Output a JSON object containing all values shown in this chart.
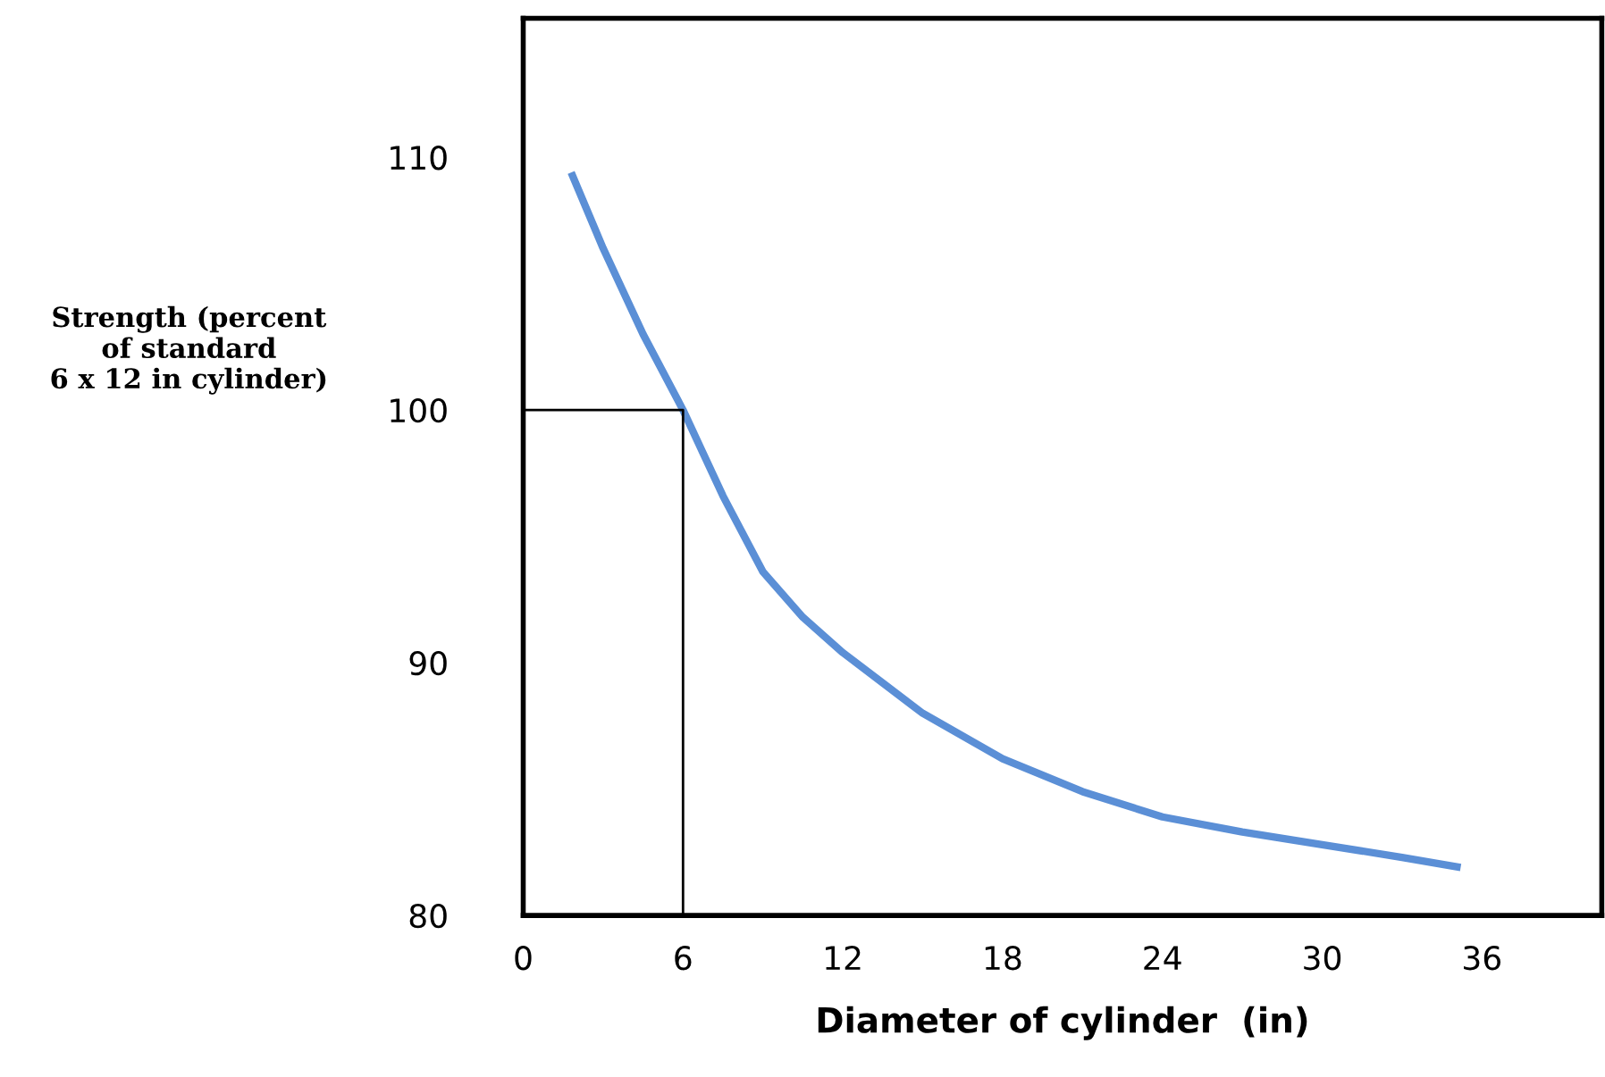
{
  "chart_data": {
    "type": "line",
    "xlabel": "Diameter of cylinder  (in)",
    "ylabel": "Strength (percent\nof standard\n6 x 12 in cylinder)",
    "series": [
      {
        "color": "#5b8fd6",
        "x": [
          1.8,
          3,
          4.5,
          6,
          7.5,
          9,
          10.5,
          12,
          15,
          18,
          21,
          24,
          27,
          30,
          33,
          35.2
        ],
        "values": [
          109.4,
          106.4,
          103.0,
          100,
          96.6,
          93.6,
          91.8,
          90.4,
          88.0,
          86.2,
          84.9,
          83.9,
          83.3,
          82.8,
          82.3,
          81.9
        ]
      },
      {
        "color": "#000000",
        "x": [
          0,
          6,
          6
        ],
        "values": [
          100,
          100,
          80
        ]
      }
    ],
    "xlim": [
      0,
      40.5
    ],
    "xticks": [
      0,
      6,
      12,
      18,
      24,
      30,
      36
    ],
    "ylim": [
      80,
      115.5
    ],
    "yticks": [
      80,
      90,
      100,
      110
    ],
    "grid": false,
    "legend": false
  }
}
